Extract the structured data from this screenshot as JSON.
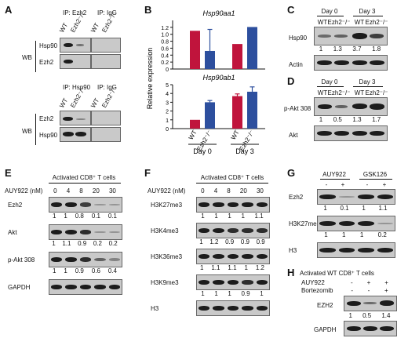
{
  "panels": {
    "A": {
      "letter": "A",
      "ip_top_1": "IP: Ezh2",
      "ip_top_2": "IP: IgG",
      "ip_bottom_1": "IP: Hsp90",
      "ip_bottom_2": "IP: IgG",
      "wb": "WB",
      "lanes": [
        "WT",
        "Ezh2⁻/⁻",
        "WT",
        "Ezh2⁻/⁻"
      ],
      "rows_top": [
        "Hsp90",
        "Ezh2"
      ],
      "rows_bottom": [
        "Ezh2",
        "Hsp90"
      ]
    },
    "B": {
      "letter": "B"
    },
    "C": {
      "letter": "C",
      "day0": "Day 0",
      "day3": "Day 3",
      "lanes": [
        "WT",
        "Ezh2⁻/⁻",
        "WT",
        "Ezh2⁻/⁻"
      ],
      "row1": "Hsp90",
      "row1_vals": [
        "1",
        "1.3",
        "3.7",
        "1.8"
      ],
      "row2": "Actin"
    },
    "D": {
      "letter": "D",
      "day0": "Day 0",
      "day3": "Day 3",
      "lanes": [
        "WT",
        "Ezh2⁻/⁻",
        "WT",
        "Ezh2⁻/⁻"
      ],
      "row1": "p-Akt 308",
      "row1_vals": [
        "1",
        "0.5",
        "1.3",
        "1.7"
      ],
      "row2": "Akt"
    },
    "E": {
      "letter": "E",
      "title": "Activated CD8⁺ T cells",
      "dose_label": "AUY922 (nM)",
      "doses": [
        "0",
        "4",
        "8",
        "20",
        "30"
      ],
      "rows": [
        {
          "label": "Ezh2",
          "vals": [
            "1",
            "1",
            "0.8",
            "0.1",
            "0.1"
          ]
        },
        {
          "label": "Akt",
          "vals": [
            "1",
            "1.1",
            "0.9",
            "0.2",
            "0.2"
          ]
        },
        {
          "label": "p-Akt 308",
          "vals": [
            "1",
            "1",
            "0.9",
            "0.6",
            "0.4"
          ]
        },
        {
          "label": "GAPDH",
          "vals": []
        }
      ]
    },
    "F": {
      "letter": "F",
      "title": "Activated CD8⁺ T cells",
      "dose_label": "AUY922 (nM)",
      "doses": [
        "0",
        "4",
        "8",
        "20",
        "30"
      ],
      "rows": [
        {
          "label": "H3K27me3",
          "vals": [
            "1",
            "1",
            "1",
            "1",
            "1.1"
          ]
        },
        {
          "label": "H3K4me3",
          "vals": [
            "1",
            "1.2",
            "0.9",
            "0.9",
            "0.9"
          ]
        },
        {
          "label": "H3K36me3",
          "vals": [
            "1",
            "1.1",
            "1.1",
            "1",
            "1.2"
          ]
        },
        {
          "label": "H3K9me3",
          "vals": [
            "1",
            "1",
            "1",
            "0.9",
            "1"
          ]
        },
        {
          "label": "H3",
          "vals": []
        }
      ]
    },
    "G": {
      "letter": "G",
      "group1": "AUY922",
      "group2": "GSK126",
      "signs": [
        "-",
        "+",
        "-",
        "+"
      ],
      "rows": [
        {
          "label": "Ezh2",
          "vals": [
            "1",
            "0.1",
            "1",
            "1.1"
          ]
        },
        {
          "label": "H3K27me3",
          "vals": [
            "1",
            "1",
            "1",
            "0.2"
          ]
        },
        {
          "label": "H3",
          "vals": []
        }
      ]
    },
    "H": {
      "letter": "H",
      "title": "Activated WT CD8⁺ T cells",
      "t1": "AUY922",
      "t2": "Bortezomib",
      "signs1": [
        "-",
        "+",
        "+"
      ],
      "signs2": [
        "-",
        "-",
        "+"
      ],
      "row1": "EZH2",
      "row1_vals": [
        "1",
        "0.5",
        "1.4"
      ],
      "row2": "GAPDH"
    }
  },
  "chart_data": [
    {
      "type": "bar",
      "title": "Hsp90aa1",
      "ylabel": "Relative expression",
      "ylim": [
        0,
        1.4
      ],
      "yticks": [
        "0",
        "0.2",
        "0.4",
        "0.6",
        "0.8",
        "1.0",
        "1.2"
      ],
      "categories": [
        "Day 0",
        "Day 3"
      ],
      "series_labels": [
        "WT",
        "Ezh2⁻/⁻"
      ],
      "series": [
        {
          "values": [
            1.1,
            0.72
          ],
          "color": "#c0143c"
        },
        {
          "values": [
            0.52,
            1.21
          ],
          "color": "#2d4f9e"
        }
      ],
      "errors": [
        [
          0,
          0
        ],
        [
          0.62,
          0
        ]
      ]
    },
    {
      "type": "bar",
      "title": "Hsp90ab1",
      "ylabel": "Relative expression",
      "ylim": [
        0,
        5
      ],
      "yticks": [
        "0",
        "1",
        "2",
        "3",
        "4",
        "5"
      ],
      "categories": [
        "Day 0",
        "Day 3"
      ],
      "series_labels": [
        "WT",
        "Ezh2⁻/⁻"
      ],
      "series": [
        {
          "values": [
            1.0,
            3.7
          ],
          "color": "#c0143c"
        },
        {
          "values": [
            3.0,
            4.2
          ],
          "color": "#2d4f9e"
        }
      ],
      "errors": [
        [
          0,
          0.25
        ],
        [
          0.2,
          0.55
        ]
      ]
    }
  ]
}
